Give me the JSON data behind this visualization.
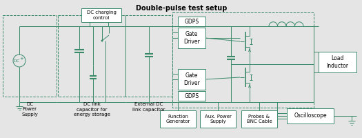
{
  "title": "Double-pulse test setup",
  "bg_color": "#e5e5e5",
  "lc": "#3a8a6a",
  "box_fill": "#ffffff",
  "labels": {
    "dc_power": "DC\nPower\nSupply",
    "dc_link": "DC link\ncapacitor for\nenergy storage",
    "ext_dc": "External DC\nlink capacitor",
    "dc_charging": "DC charging\ncontrol",
    "gdps_top": "GDPS",
    "gate_top": "Gate\nDriver",
    "gate_bot": "Gate\nDriver",
    "gdps_bot": "GDPS",
    "load_inductor": "Load\nInductor",
    "func_gen": "Function\nGenerator",
    "aux_power": "Aux. Power\nSupply",
    "probes": "Probes &\nBNC Cable",
    "oscilloscope": "Oscilloscope"
  }
}
